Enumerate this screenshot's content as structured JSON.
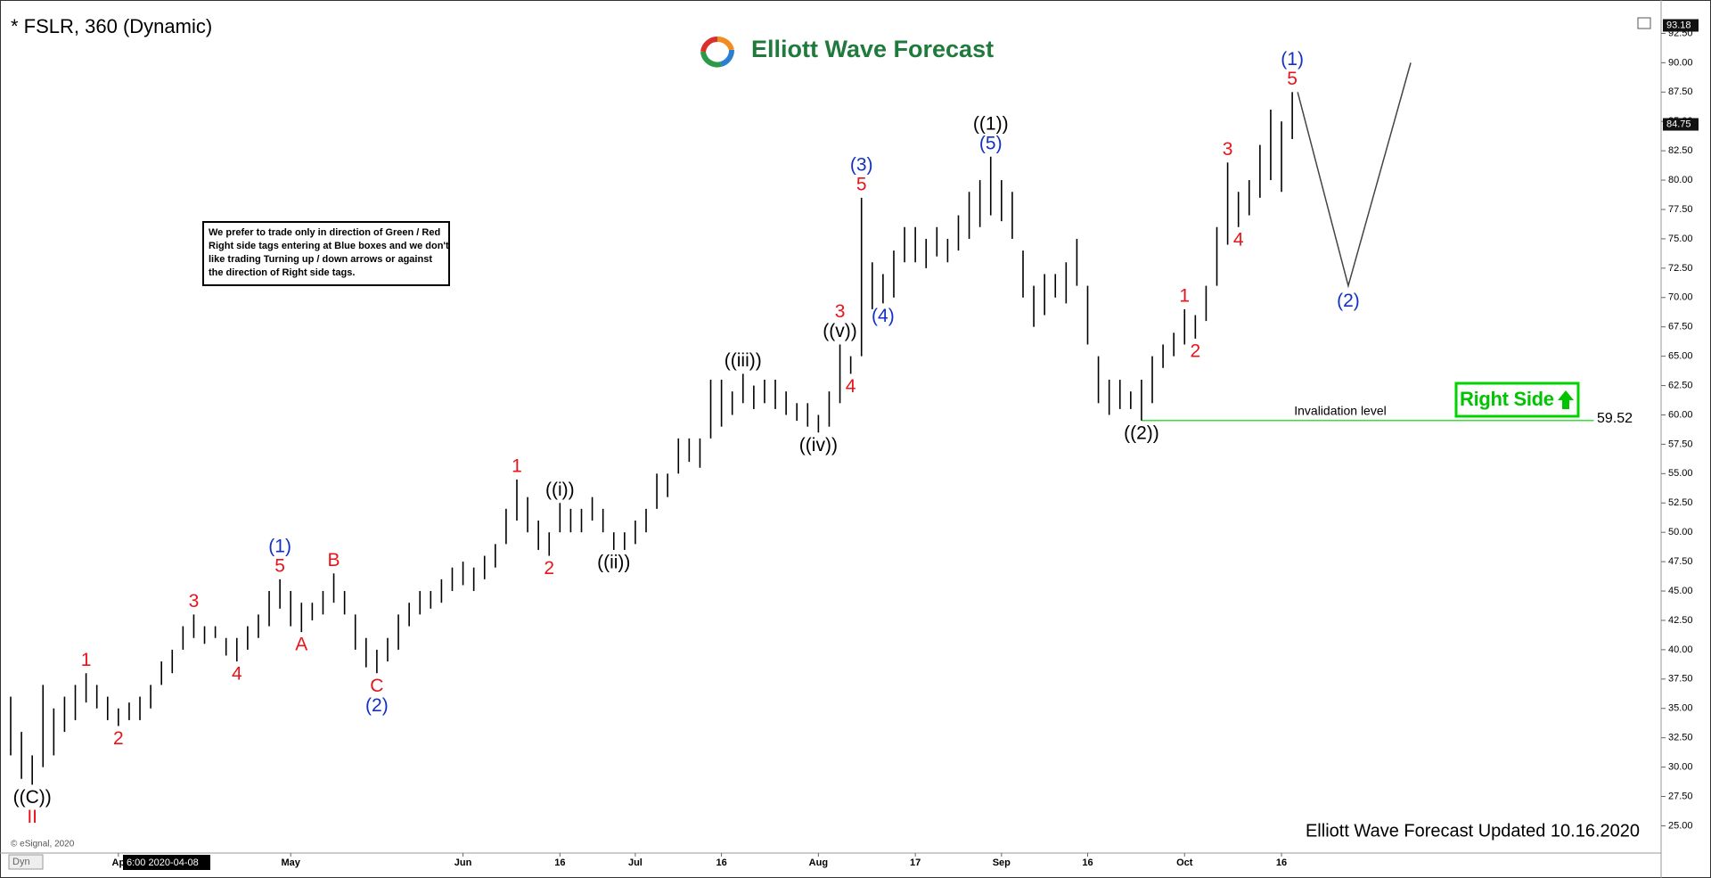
{
  "chart_data": {
    "type": "ohlc",
    "title": "* FSLR, 360 (Dynamic)",
    "logo": "Elliott Wave Forecast",
    "note": [
      "We prefer to trade only in direction of Green / Red",
      "Right side tags entering at Blue boxes and we don't",
      "like trading Turning up / down arrows or against",
      "the direction of Right side tags."
    ],
    "right_side_tag": "Right Side",
    "footer": "Elliott Wave Forecast Updated 10.16.2020",
    "copyright": "© eSignal, 2020",
    "crosshair_label": "6:00 2020-04-08",
    "mode_label": "Dyn",
    "categories": [
      null,
      null,
      null,
      null,
      null,
      null,
      null,
      null,
      null,
      null,
      "Ap",
      null,
      null,
      null,
      null,
      null,
      null,
      null,
      null,
      null,
      null,
      null,
      null,
      null,
      null,
      null,
      "May",
      null,
      null,
      null,
      null,
      null,
      null,
      null,
      null,
      null,
      null,
      null,
      null,
      null,
      null,
      null,
      "Jun",
      null,
      null,
      null,
      null,
      null,
      null,
      null,
      null,
      "16",
      null,
      null,
      null,
      null,
      null,
      null,
      "Jul",
      null,
      null,
      null,
      null,
      null,
      null,
      null,
      "16",
      null,
      null,
      null,
      null,
      null,
      null,
      null,
      null,
      "Aug",
      null,
      null,
      null,
      null,
      null,
      null,
      null,
      null,
      "17",
      null,
      null,
      null,
      null,
      null,
      null,
      null,
      "Sep",
      null,
      null,
      null,
      null,
      null,
      null,
      null,
      "16",
      null,
      null,
      null,
      null,
      null,
      null,
      null,
      null,
      "Oct",
      null,
      null,
      null,
      null,
      null,
      null,
      null,
      null,
      "16",
      null
    ],
    "series": [
      {
        "color": "#000000",
        "high": [
          36,
          33,
          31,
          37,
          35,
          36,
          37,
          38,
          37,
          36,
          35,
          35.5,
          36,
          37,
          39,
          40,
          42,
          43,
          42,
          42,
          41,
          41,
          42,
          43,
          45,
          46,
          45,
          44,
          44,
          45,
          46.5,
          45,
          43,
          41,
          40,
          41,
          43,
          44,
          45,
          45,
          46,
          47,
          47.5,
          47,
          48,
          49,
          52,
          54.5,
          53,
          51,
          50,
          52.5,
          52,
          52,
          53,
          52,
          50,
          50,
          51,
          52,
          55,
          55,
          58,
          58,
          58,
          63,
          63,
          62,
          63.5,
          62.5,
          63,
          63,
          62,
          61,
          61,
          60,
          62,
          66,
          65,
          78.5,
          73,
          72,
          74,
          76,
          76,
          75,
          76,
          75,
          77,
          79,
          80,
          82,
          80,
          79,
          74,
          71,
          72,
          72,
          73,
          75,
          71,
          65,
          63,
          63,
          62,
          63,
          65,
          66,
          67,
          69,
          68.5,
          71,
          76,
          81.5,
          79,
          80,
          83,
          86,
          85,
          87.5
        ],
        "low": [
          31,
          29,
          28.5,
          30,
          31,
          33,
          34,
          35.5,
          35,
          34,
          33.5,
          34,
          34,
          35,
          37,
          38,
          40,
          41,
          40.5,
          41,
          39.5,
          39,
          40,
          41,
          42,
          43.5,
          42,
          41.5,
          42.5,
          43,
          44,
          43,
          40,
          38.5,
          38,
          39,
          40,
          42,
          43,
          43.5,
          44,
          45,
          45.5,
          45,
          46,
          47,
          49,
          51,
          50,
          48.5,
          48,
          50,
          50,
          50,
          51,
          50,
          48.5,
          48.5,
          49,
          50,
          52,
          53,
          55,
          56,
          55.5,
          58,
          59,
          60,
          61,
          60.5,
          61,
          60.5,
          60,
          59.5,
          59,
          58.5,
          59,
          61,
          63.5,
          65,
          69,
          69.5,
          70,
          73,
          73,
          72.5,
          73.5,
          73,
          74,
          75,
          76,
          77,
          76.5,
          75,
          70,
          67.5,
          68.5,
          70,
          69.5,
          71,
          66,
          61,
          60,
          60.5,
          60.5,
          59.52,
          61,
          64,
          65,
          66,
          66.5,
          68,
          71,
          74.5,
          76,
          77,
          78.5,
          80,
          79,
          83.5
        ]
      }
    ],
    "projection": {
      "values": [
        87.5,
        71,
        90
      ],
      "color": "#444444"
    },
    "invalidation": {
      "label": "Invalidation level",
      "value": 59.52,
      "color": "#3ddc3d"
    },
    "price_markers": [
      93.18,
      84.75
    ],
    "annotations": [
      {
        "text": "((C))",
        "color": "#000000"
      },
      {
        "text": "II",
        "color": "#e8141c"
      },
      {
        "text": "1",
        "color": "#e8141c"
      },
      {
        "text": "2",
        "color": "#e8141c"
      },
      {
        "text": "3",
        "color": "#e8141c"
      },
      {
        "text": "4",
        "color": "#e8141c"
      },
      {
        "text": "5",
        "color": "#e8141c"
      },
      {
        "text": "(1)",
        "color": "#1330c4"
      },
      {
        "text": "A",
        "color": "#e8141c"
      },
      {
        "text": "B",
        "color": "#e8141c"
      },
      {
        "text": "C",
        "color": "#e8141c"
      },
      {
        "text": "(2)",
        "color": "#1330c4"
      },
      {
        "text": "1",
        "color": "#e8141c"
      },
      {
        "text": "2",
        "color": "#e8141c"
      },
      {
        "text": "((i))",
        "color": "#000000"
      },
      {
        "text": "((ii))",
        "color": "#000000"
      },
      {
        "text": "((iii))",
        "color": "#000000"
      },
      {
        "text": "((iv))",
        "color": "#000000"
      },
      {
        "text": "((v))",
        "color": "#000000"
      },
      {
        "text": "3",
        "color": "#e8141c"
      },
      {
        "text": "4",
        "color": "#e8141c"
      },
      {
        "text": "5",
        "color": "#e8141c"
      },
      {
        "text": "(3)",
        "color": "#1330c4"
      },
      {
        "text": "(4)",
        "color": "#1330c4"
      },
      {
        "text": "(5)",
        "color": "#1330c4"
      },
      {
        "text": "((1))",
        "color": "#000000"
      },
      {
        "text": "((2))",
        "color": "#000000"
      },
      {
        "text": "1",
        "color": "#e8141c"
      },
      {
        "text": "2",
        "color": "#e8141c"
      },
      {
        "text": "3",
        "color": "#e8141c"
      },
      {
        "text": "4",
        "color": "#e8141c"
      },
      {
        "text": "5",
        "color": "#e8141c"
      },
      {
        "text": "(1)",
        "color": "#1330c4"
      },
      {
        "text": "(2)",
        "color": "#1330c4"
      }
    ],
    "ylim": [
      22.68,
      94.28
    ],
    "yticks": [
      {
        "value": 25,
        "label": "25.00"
      },
      {
        "value": 27.5,
        "label": "27.50"
      },
      {
        "value": 30,
        "label": "30.00"
      },
      {
        "value": 32.5,
        "label": "32.50"
      },
      {
        "value": 35,
        "label": "35.00"
      },
      {
        "value": 37.5,
        "label": "37.50"
      },
      {
        "value": 40,
        "label": "40.00"
      },
      {
        "value": 42.5,
        "label": "42.50"
      },
      {
        "value": 45,
        "label": "45.00"
      },
      {
        "value": 47.5,
        "label": "47.50"
      },
      {
        "value": 50,
        "label": "50.00"
      },
      {
        "value": 52.5,
        "label": "52.50"
      },
      {
        "value": 55,
        "label": "55.00"
      },
      {
        "value": 57.5,
        "label": "57.50"
      },
      {
        "value": 60,
        "label": "60.00"
      },
      {
        "value": 62.5,
        "label": "62.50"
      },
      {
        "value": 65,
        "label": "65.00"
      },
      {
        "value": 67.5,
        "label": "67.50"
      },
      {
        "value": 70,
        "label": "70.00"
      },
      {
        "value": 72.5,
        "label": "72.50"
      },
      {
        "value": 75,
        "label": "75.00"
      },
      {
        "value": 77.5,
        "label": "77.50"
      },
      {
        "value": 80,
        "label": "80.00"
      },
      {
        "value": 82.5,
        "label": "82.50"
      },
      {
        "value": 85,
        "label": "85.00"
      },
      {
        "value": 87.5,
        "label": "87.50"
      },
      {
        "value": 90,
        "label": "90.00"
      },
      {
        "value": 92.5,
        "label": "92.50"
      }
    ],
    "grid": false
  }
}
